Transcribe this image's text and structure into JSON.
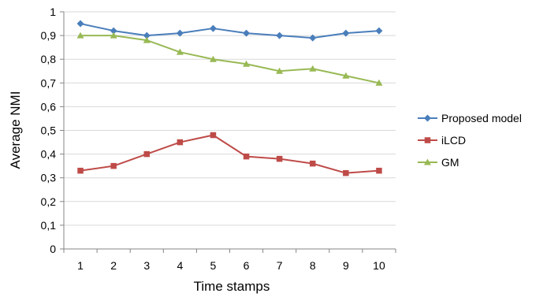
{
  "chart_data": {
    "type": "line",
    "title": "",
    "xlabel": "Time stamps",
    "ylabel": "Average NMI",
    "x": [
      1,
      2,
      3,
      4,
      5,
      6,
      7,
      8,
      9,
      10
    ],
    "x_tick_labels": [
      "1",
      "2",
      "3",
      "4",
      "5",
      "6",
      "7",
      "8",
      "9",
      "10"
    ],
    "ylim": [
      0,
      1
    ],
    "y_ticks": [
      0,
      0.1,
      0.2,
      0.3,
      0.4,
      0.5,
      0.6,
      0.7,
      0.8,
      0.9,
      1
    ],
    "y_tick_labels": [
      "0",
      "0,1",
      "0,2",
      "0,3",
      "0,4",
      "0,5",
      "0,6",
      "0,7",
      "0,8",
      "0,9",
      "1"
    ],
    "grid": "horizontal",
    "legend_position": "right",
    "series": [
      {
        "name": "Proposed model",
        "color": "#4a7ebb",
        "marker": "diamond",
        "values": [
          0.95,
          0.92,
          0.9,
          0.91,
          0.93,
          0.91,
          0.9,
          0.89,
          0.91,
          0.92
        ]
      },
      {
        "name": "iLCD",
        "color": "#be4b48",
        "marker": "square",
        "values": [
          0.33,
          0.35,
          0.4,
          0.45,
          0.48,
          0.39,
          0.38,
          0.36,
          0.32,
          0.33
        ]
      },
      {
        "name": "GM",
        "color": "#98b954",
        "marker": "triangle",
        "values": [
          0.9,
          0.9,
          0.88,
          0.83,
          0.8,
          0.78,
          0.75,
          0.76,
          0.73,
          0.7
        ]
      }
    ]
  }
}
